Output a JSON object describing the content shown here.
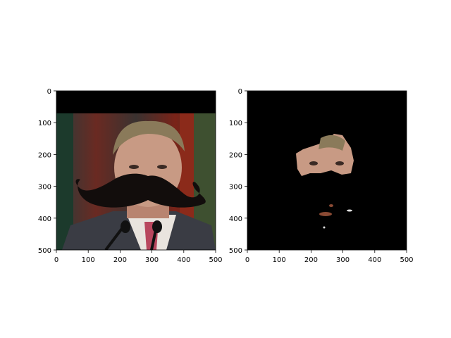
{
  "chart_data": [
    {
      "type": "image",
      "title": "",
      "xlabel": "",
      "ylabel": "",
      "xlim": [
        0,
        500
      ],
      "ylim": [
        500,
        0
      ],
      "xticks": [
        "0",
        "100",
        "200",
        "300",
        "400",
        "500"
      ],
      "yticks": [
        "0",
        "100",
        "200",
        "300",
        "400",
        "500"
      ],
      "image_content": "portrait photo with a black mustache overlay; black band at top"
    },
    {
      "type": "image",
      "title": "",
      "xlabel": "",
      "ylabel": "",
      "xlim": [
        0,
        500
      ],
      "ylim": [
        500,
        0
      ],
      "xticks": [
        "0",
        "100",
        "200",
        "300",
        "400",
        "500"
      ],
      "yticks": [
        "0",
        "100",
        "200",
        "300",
        "400",
        "500"
      ],
      "image_content": "segmentation mask: black background with visible upper face region and small skin-colored spots"
    }
  ],
  "colors": {
    "background": "#000000",
    "skin": "#c89a84",
    "hair": "#8a7a5a",
    "suit": "#3a3c44",
    "shirt": "#e9e4de",
    "tie": "#b8475e",
    "mustache": "#120d0c"
  }
}
